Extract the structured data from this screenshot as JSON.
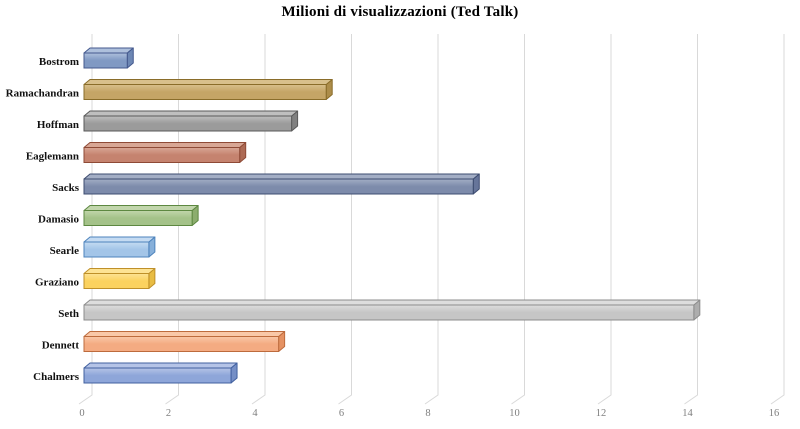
{
  "title": "Milioni di visualizzazioni (Ted Talk)",
  "chart_data": {
    "type": "bar",
    "orientation": "horizontal",
    "style": "3d-beveled-bars",
    "title": "Milioni di visualizzazioni (Ted Talk)",
    "categories": [
      "Bostrom",
      "Ramachandran",
      "Hoffman",
      "Eaglemann",
      "Sacks",
      "Damasio",
      "Searle",
      "Graziano",
      "Seth",
      "Dennett",
      "Chalmers"
    ],
    "values": [
      1.0,
      5.6,
      4.8,
      3.6,
      9.0,
      2.5,
      1.5,
      1.5,
      14.1,
      4.5,
      3.4
    ],
    "xlabel": "",
    "ylabel": "",
    "xlim": [
      0,
      16
    ],
    "xticks": [
      0,
      2,
      4,
      6,
      8,
      10,
      12,
      14,
      16
    ],
    "grid": true,
    "legend": false,
    "bar_colors": [
      {
        "name": "steel-blue",
        "fill": "#8099c3",
        "border": "#44598e",
        "top": "#aec0dc",
        "side": "#6d87b4"
      },
      {
        "name": "tan-gold",
        "fill": "#c5a566",
        "border": "#8a6d2a",
        "top": "#d8c08c",
        "side": "#ad8d4a"
      },
      {
        "name": "gray",
        "fill": "#9b9b9b",
        "border": "#5a5a5a",
        "top": "#bfbfbf",
        "side": "#818181"
      },
      {
        "name": "brick",
        "fill": "#c5836f",
        "border": "#8e4a36",
        "top": "#d8a795",
        "side": "#ad6a54"
      },
      {
        "name": "dark-slate-blue",
        "fill": "#7d8bab",
        "border": "#3d4c70",
        "top": "#a3aec5",
        "side": "#66759a"
      },
      {
        "name": "green",
        "fill": "#a4c289",
        "border": "#5d8841",
        "top": "#c2d6ac",
        "side": "#8cad6e"
      },
      {
        "name": "light-blue",
        "fill": "#a3c5e8",
        "border": "#4d83bc",
        "top": "#c5dbf2",
        "side": "#87b0da"
      },
      {
        "name": "yellow",
        "fill": "#fbd25f",
        "border": "#bf9029",
        "top": "#fde394",
        "side": "#e8bc43"
      },
      {
        "name": "silver",
        "fill": "#c6c6c6",
        "border": "#8c8c8c",
        "top": "#dddddd",
        "side": "#adadad"
      },
      {
        "name": "orange",
        "fill": "#f4ab82",
        "border": "#bd6b3d",
        "top": "#f9c8a8",
        "side": "#e59263"
      },
      {
        "name": "periwinkle",
        "fill": "#8ea6d9",
        "border": "#41609f",
        "top": "#b5c4e7",
        "side": "#758fc6"
      }
    ],
    "colors": {
      "gridline": "#d9d9d9",
      "tick_label": "#7f7f7f",
      "category_label": "#111111",
      "title": "#000000",
      "background": "#ffffff"
    }
  }
}
